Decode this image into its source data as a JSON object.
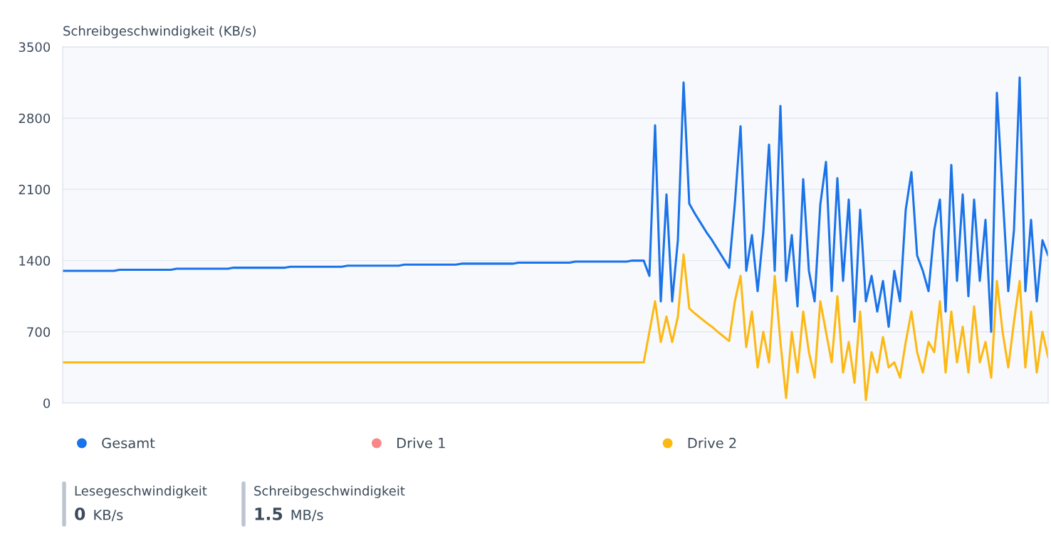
{
  "chart_data": {
    "type": "line",
    "title": "Schreibgeschwindigkeit (KB/s)",
    "categories": [
      null,
      null,
      null,
      null,
      null,
      null,
      null,
      null,
      null,
      null,
      null,
      null,
      null,
      null,
      null,
      null,
      null,
      null,
      null,
      null,
      null,
      null,
      null,
      null,
      null,
      null,
      null,
      null,
      null,
      null,
      null,
      null,
      null,
      null,
      null,
      null,
      null,
      null,
      null,
      null,
      null,
      null,
      null,
      null,
      null,
      null,
      null,
      null,
      null,
      null,
      null,
      null,
      null,
      null,
      null,
      null,
      null,
      null,
      null,
      null,
      null,
      null,
      null,
      null,
      null,
      null,
      null,
      null,
      null,
      null,
      null,
      null,
      null,
      null,
      null,
      null,
      null,
      null,
      null,
      null,
      null,
      null,
      null,
      null,
      null,
      null,
      null,
      null,
      null,
      null,
      null,
      null,
      null,
      null,
      null,
      null,
      null,
      null,
      null,
      null,
      null,
      null,
      null,
      null,
      null,
      null,
      null,
      null,
      null,
      null,
      null,
      null,
      null,
      null,
      null,
      null,
      null,
      null,
      null,
      null,
      null,
      null,
      null,
      null,
      null,
      null,
      null,
      null,
      null,
      null,
      null,
      null,
      null,
      null,
      null,
      null,
      null,
      null,
      null,
      null,
      null,
      null,
      null,
      null,
      null,
      null,
      null,
      null,
      null,
      null,
      null,
      null,
      null,
      null,
      null,
      null,
      null,
      null,
      null,
      null,
      null,
      null,
      null,
      null,
      null,
      null,
      null,
      null,
      null,
      null,
      null,
      null,
      null,
      null
    ],
    "series": [
      {
        "name": "Gesamt",
        "color": "#1a73e8",
        "values": [
          1300,
          1300,
          1300,
          1300,
          1300,
          1300,
          1300,
          1300,
          1300,
          1300,
          1310,
          1310,
          1310,
          1310,
          1310,
          1310,
          1310,
          1310,
          1310,
          1310,
          1320,
          1320,
          1320,
          1320,
          1320,
          1320,
          1320,
          1320,
          1320,
          1320,
          1330,
          1330,
          1330,
          1330,
          1330,
          1330,
          1330,
          1330,
          1330,
          1330,
          1340,
          1340,
          1340,
          1340,
          1340,
          1340,
          1340,
          1340,
          1340,
          1340,
          1350,
          1350,
          1350,
          1350,
          1350,
          1350,
          1350,
          1350,
          1350,
          1350,
          1360,
          1360,
          1360,
          1360,
          1360,
          1360,
          1360,
          1360,
          1360,
          1360,
          1370,
          1370,
          1370,
          1370,
          1370,
          1370,
          1370,
          1370,
          1370,
          1370,
          1380,
          1380,
          1380,
          1380,
          1380,
          1380,
          1380,
          1380,
          1380,
          1380,
          1390,
          1390,
          1390,
          1390,
          1390,
          1390,
          1390,
          1390,
          1390,
          1390,
          1400,
          1400,
          1400,
          1250,
          2730,
          1000,
          2050,
          1000,
          1600,
          3150,
          1960,
          1860,
          1770,
          1680,
          1600,
          1510,
          1420,
          1330,
          1960,
          2720,
          1300,
          1650,
          1100,
          1680,
          2540,
          1300,
          2920,
          1200,
          1650,
          950,
          2200,
          1300,
          1000,
          1950,
          2370,
          1100,
          2210,
          1200,
          2000,
          800,
          1900,
          1000,
          1250,
          900,
          1200,
          750,
          1300,
          1000,
          1900,
          2270,
          1450,
          1300,
          1100,
          1700,
          2000,
          900,
          2340,
          1200,
          2050,
          1050,
          2000,
          1200,
          1800,
          700,
          3050,
          2060,
          1100,
          1700,
          3200,
          1100,
          1800,
          1000,
          1600,
          1450
        ]
      },
      {
        "name": "Drive 1",
        "color": "#f88787",
        "values": [
          null,
          null,
          null,
          null,
          null,
          null,
          null,
          null,
          null,
          null,
          null,
          null,
          null,
          null,
          null,
          null,
          null,
          null,
          null,
          null,
          null,
          null,
          null,
          null,
          null,
          null,
          null,
          null,
          null,
          null,
          null,
          null,
          null,
          null,
          null,
          null,
          null,
          null,
          null,
          null,
          null,
          null,
          null,
          null,
          null,
          null,
          null,
          null,
          null,
          null,
          null,
          null,
          null,
          null,
          null,
          null,
          null,
          null,
          null,
          null,
          null,
          null,
          null,
          null,
          null,
          null,
          null,
          null,
          null,
          null,
          null,
          null,
          null,
          null,
          null,
          null,
          null,
          null,
          null,
          null,
          null,
          null,
          null,
          null,
          null,
          null,
          null,
          null,
          null,
          null,
          null,
          null,
          null,
          null,
          null,
          null,
          null,
          null,
          null,
          null,
          null,
          null,
          null,
          null,
          null,
          null,
          null,
          null,
          null,
          null,
          null,
          null,
          null,
          null,
          null,
          null,
          null,
          null,
          null,
          null,
          null,
          null,
          null,
          null,
          null,
          null,
          null,
          null,
          null,
          null,
          null,
          null,
          null,
          null,
          null,
          null,
          null,
          null,
          null,
          null,
          null,
          null,
          null,
          null,
          null,
          null,
          null,
          null,
          null,
          null,
          null,
          null,
          null,
          null,
          null,
          null,
          null,
          null,
          null,
          null,
          null,
          null,
          null,
          null,
          null,
          null,
          null,
          null,
          null,
          null,
          null,
          null,
          null,
          null
        ]
      },
      {
        "name": "Drive 2",
        "color": "#fdb913",
        "values": [
          400,
          400,
          400,
          400,
          400,
          400,
          400,
          400,
          400,
          400,
          400,
          400,
          400,
          400,
          400,
          400,
          400,
          400,
          400,
          400,
          400,
          400,
          400,
          400,
          400,
          400,
          400,
          400,
          400,
          400,
          400,
          400,
          400,
          400,
          400,
          400,
          400,
          400,
          400,
          400,
          400,
          400,
          400,
          400,
          400,
          400,
          400,
          400,
          400,
          400,
          400,
          400,
          400,
          400,
          400,
          400,
          400,
          400,
          400,
          400,
          400,
          400,
          400,
          400,
          400,
          400,
          400,
          400,
          400,
          400,
          400,
          400,
          400,
          400,
          400,
          400,
          400,
          400,
          400,
          400,
          400,
          400,
          400,
          400,
          400,
          400,
          400,
          400,
          400,
          400,
          400,
          400,
          400,
          400,
          400,
          400,
          400,
          400,
          400,
          400,
          400,
          400,
          400,
          700,
          1000,
          600,
          850,
          600,
          850,
          1460,
          930,
          880,
          835,
          790,
          750,
          700,
          655,
          610,
          1000,
          1250,
          550,
          900,
          350,
          700,
          400,
          1250,
          600,
          50,
          700,
          300,
          900,
          500,
          250,
          1000,
          700,
          400,
          1050,
          300,
          600,
          200,
          900,
          30,
          500,
          300,
          650,
          350,
          400,
          250,
          600,
          900,
          500,
          300,
          600,
          500,
          1000,
          300,
          900,
          400,
          750,
          300,
          950,
          400,
          600,
          250,
          1200,
          700,
          350,
          800,
          1200,
          350,
          900,
          300,
          700,
          450
        ]
      }
    ],
    "ylim": [
      0,
      3500
    ],
    "yticks": [
      0,
      700,
      1400,
      2100,
      2800,
      3500
    ],
    "grid": "y",
    "legend": "bottom",
    "tick_labels": "y",
    "marker": "none",
    "line_style": "solid",
    "annotations": [
      "Lesegeschwindigkeit",
      "0 KB/s",
      "Schreibgeschwindigkeit",
      "1.5 MB/s"
    ]
  }
}
